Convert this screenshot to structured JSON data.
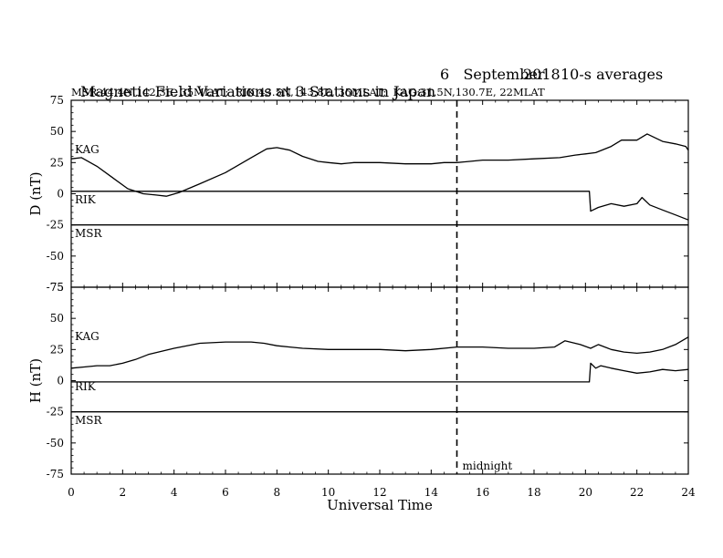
{
  "title": {
    "main": "Magnetic Field Variations at 3 Stations in Japan",
    "day": "6",
    "month": "September",
    "year": "2018",
    "averaging": "10-s averages"
  },
  "subtitle": "MSR:44.4N,142.3E, 35MLAT;  RIK:43.5N,143.8E, 35MLAT;  KAG:31.5N,130.7E, 22MLAT",
  "midnight_label": "midnight",
  "chart_data": [
    {
      "type": "line",
      "panel": "D",
      "ylabel": "D (nT)",
      "xlabel": "",
      "xlim": [
        0,
        24
      ],
      "ylim": [
        -75,
        75
      ],
      "xticks": [
        0,
        2,
        4,
        6,
        8,
        10,
        12,
        14,
        16,
        18,
        20,
        22,
        24
      ],
      "yticks": [
        -75,
        -50,
        -25,
        0,
        25,
        50,
        75
      ],
      "series": [
        {
          "name": "KAG",
          "color": "#000000",
          "x": [
            0,
            0.4,
            1,
            1.6,
            2.2,
            2.8,
            3.3,
            3.7,
            4.2,
            5,
            6,
            7,
            7.6,
            8,
            8.5,
            9,
            9.6,
            10,
            10.5,
            11,
            12,
            13,
            14,
            14.5,
            15,
            15.5,
            16,
            17,
            18,
            19,
            19.6,
            20,
            20.4,
            21,
            21.4,
            22,
            22.4,
            23,
            23.5,
            23.9,
            24
          ],
          "y": [
            28,
            29,
            22,
            13,
            4,
            0,
            -1,
            -2,
            1,
            8,
            17,
            29,
            36,
            37,
            35,
            30,
            26,
            25,
            24,
            25,
            25,
            24,
            24,
            25,
            25,
            26,
            27,
            27,
            28,
            29,
            31,
            32,
            33,
            38,
            43,
            43,
            48,
            42,
            40,
            38,
            35
          ]
        },
        {
          "name": "RIK",
          "color": "#000000",
          "x": [
            0,
            20.15,
            20.2,
            20.5,
            21,
            21.5,
            22,
            22.2,
            22.5,
            23,
            23.5,
            24
          ],
          "y": [
            2,
            2,
            -14,
            -11,
            -8,
            -10,
            -8,
            -3,
            -9,
            -13,
            -17,
            -21
          ]
        },
        {
          "name": "MSR",
          "color": "#000000",
          "x": [
            0,
            24
          ],
          "y": [
            -25,
            -25
          ]
        }
      ]
    },
    {
      "type": "line",
      "panel": "H",
      "ylabel": "H (nT)",
      "xlabel": "Universal Time",
      "xlim": [
        0,
        24
      ],
      "ylim": [
        -75,
        75
      ],
      "xticks": [
        0,
        2,
        4,
        6,
        8,
        10,
        12,
        14,
        16,
        18,
        20,
        22,
        24
      ],
      "yticks": [
        -75,
        -50,
        -25,
        0,
        25,
        50,
        75
      ],
      "series": [
        {
          "name": "KAG",
          "color": "#000000",
          "x": [
            0,
            0.5,
            1,
            1.5,
            2,
            2.5,
            3,
            4,
            5,
            6,
            7,
            7.5,
            8,
            8.5,
            9,
            10,
            11,
            12,
            13,
            14,
            15,
            16,
            17,
            18,
            18.8,
            19.2,
            19.8,
            20.2,
            20.5,
            21,
            21.5,
            22,
            22.5,
            23,
            23.5,
            24
          ],
          "y": [
            10,
            11,
            12,
            12,
            14,
            17,
            21,
            26,
            30,
            31,
            31,
            30,
            28,
            27,
            26,
            25,
            25,
            25,
            24,
            25,
            27,
            27,
            26,
            26,
            27,
            32,
            29,
            26,
            29,
            25,
            23,
            22,
            23,
            25,
            29,
            35
          ]
        },
        {
          "name": "RIK",
          "color": "#000000",
          "x": [
            0,
            20.15,
            20.2,
            20.4,
            20.6,
            21,
            21.5,
            22,
            22.5,
            23,
            23.5,
            24
          ],
          "y": [
            -1,
            -1,
            14,
            10,
            12,
            10,
            8,
            6,
            7,
            9,
            8,
            9
          ]
        },
        {
          "name": "MSR",
          "color": "#000000",
          "x": [
            0,
            24
          ],
          "y": [
            -25,
            -25
          ]
        }
      ]
    }
  ]
}
